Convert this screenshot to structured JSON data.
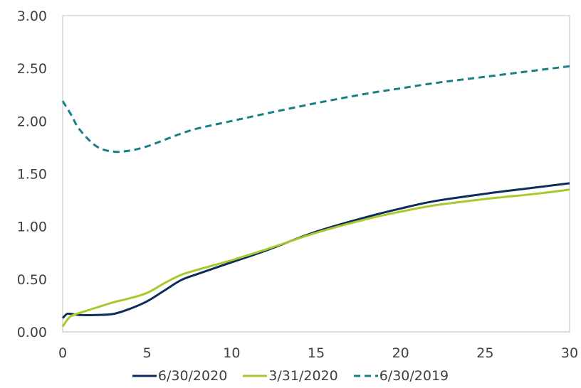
{
  "chart_data": {
    "type": "line",
    "title": "",
    "xlabel": "",
    "ylabel": "",
    "xlim": [
      0,
      30
    ],
    "ylim": [
      0,
      3
    ],
    "x_ticks": [
      "0",
      "5",
      "10",
      "15",
      "20",
      "25",
      "30"
    ],
    "y_ticks": [
      "0.00",
      "0.50",
      "1.00",
      "1.50",
      "2.00",
      "2.50",
      "3.00"
    ],
    "grid": false,
    "legend_position": "bottom",
    "series": [
      {
        "name": "6/30/2020",
        "color": "#0d2c5c",
        "style": "solid",
        "x": [
          0,
          0.25,
          0.5,
          1,
          2,
          3,
          4,
          5,
          6,
          7,
          8,
          10,
          12,
          15,
          18,
          20,
          22,
          25,
          28,
          30
        ],
        "y": [
          0.13,
          0.17,
          0.17,
          0.16,
          0.16,
          0.17,
          0.22,
          0.29,
          0.39,
          0.49,
          0.55,
          0.66,
          0.77,
          0.95,
          1.09,
          1.17,
          1.24,
          1.31,
          1.37,
          1.41
        ]
      },
      {
        "name": "3/31/2020",
        "color": "#a8c92e",
        "style": "solid",
        "x": [
          0,
          0.25,
          0.5,
          1,
          2,
          3,
          4,
          5,
          6,
          7,
          8,
          10,
          12,
          15,
          18,
          20,
          22,
          25,
          28,
          30
        ],
        "y": [
          0.05,
          0.11,
          0.15,
          0.18,
          0.23,
          0.28,
          0.32,
          0.37,
          0.46,
          0.54,
          0.59,
          0.68,
          0.78,
          0.94,
          1.07,
          1.14,
          1.2,
          1.26,
          1.31,
          1.35
        ]
      },
      {
        "name": "6/30/2019",
        "color": "#1a7f82",
        "style": "dashed",
        "x": [
          0,
          0.5,
          1,
          2,
          3,
          4,
          5,
          6,
          7,
          8,
          10,
          12,
          15,
          18,
          20,
          22,
          25,
          28,
          30
        ],
        "y": [
          2.19,
          2.06,
          1.92,
          1.76,
          1.71,
          1.72,
          1.76,
          1.82,
          1.88,
          1.93,
          2.0,
          2.07,
          2.17,
          2.26,
          2.31,
          2.36,
          2.42,
          2.48,
          2.52
        ]
      }
    ]
  }
}
